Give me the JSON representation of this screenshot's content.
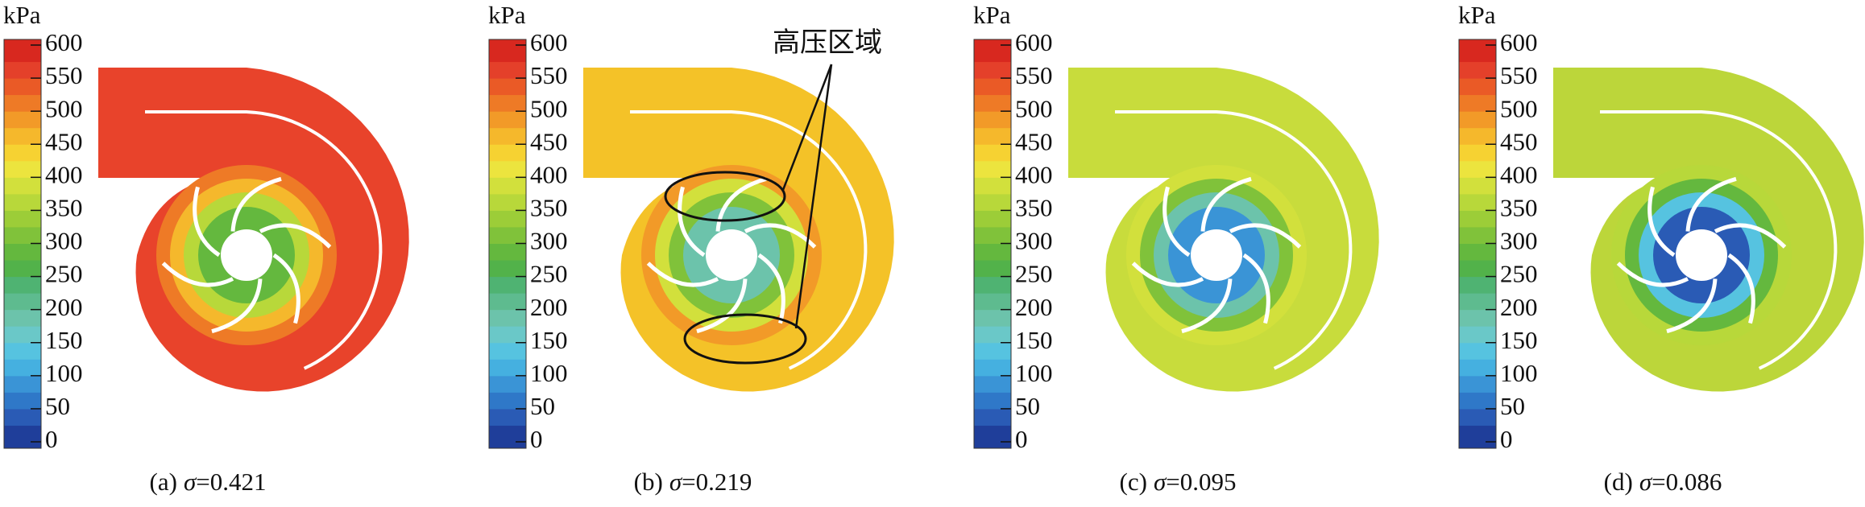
{
  "colorbar": {
    "unit": "kPa",
    "range": [
      0,
      600
    ],
    "ticks": [
      0,
      50,
      100,
      150,
      200,
      250,
      300,
      350,
      400,
      450,
      500,
      550,
      600
    ],
    "colors": [
      "#1f3e9a",
      "#2a5bb5",
      "#2f78c8",
      "#3a94d6",
      "#45b0e0",
      "#56c3e0",
      "#6ac8c8",
      "#6cc3ab",
      "#5ebb8f",
      "#4fb372",
      "#52b24a",
      "#64b83e",
      "#80c23a",
      "#9ccd38",
      "#b8d83a",
      "#d2e03c",
      "#ece43e",
      "#f6d232",
      "#f5b82c",
      "#f29a28",
      "#ee7a26",
      "#ea5a26",
      "#e4402a",
      "#d8281f"
    ]
  },
  "panels": [
    {
      "caption": [
        "(a)",
        "σ",
        "=0.421"
      ],
      "volute_color": "#e8432b",
      "impeller_colors": [
        "#ee7a26",
        "#f5b82c",
        "#b8d83a",
        "#64b83e"
      ]
    },
    {
      "caption": [
        "(b)",
        "σ",
        "=0.219"
      ],
      "volute_color": "#f4c228",
      "impeller_colors": [
        "#f29a28",
        "#d2e03c",
        "#80c23a",
        "#6cc3ab"
      ]
    },
    {
      "caption": [
        "(c)",
        "σ",
        "=0.095"
      ],
      "volute_color": "#c8dc3c",
      "impeller_colors": [
        "#d2e03c",
        "#80c23a",
        "#6cc3ab",
        "#3a94d6"
      ]
    },
    {
      "caption": [
        "(d)",
        "σ",
        "=0.086"
      ],
      "volute_color": "#bcd63a",
      "impeller_colors": [
        "#b8d83a",
        "#64b83e",
        "#56c3e0",
        "#2a5bb5"
      ]
    }
  ],
  "annotation": {
    "text": "高压区域"
  }
}
